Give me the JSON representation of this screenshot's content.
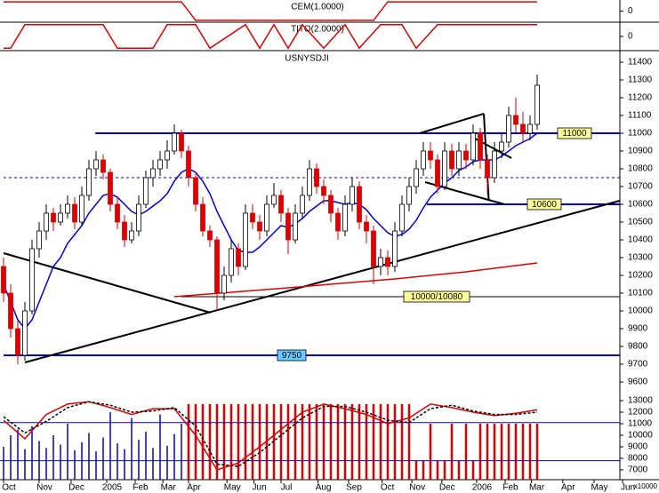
{
  "chart_data": [
    {
      "type": "line",
      "title": "CEM(1.0000)",
      "color": "#e00000",
      "x": [
        0,
        25,
        27,
        52,
        54,
        75
      ],
      "values": [
        1,
        1,
        -1,
        -1,
        1,
        1
      ],
      "ylim": [
        -1.2,
        1.2
      ],
      "yticks": [
        0
      ]
    },
    {
      "type": "line",
      "title": "TITO(2.0000)",
      "color": "#e00000",
      "x": [
        0,
        1,
        3,
        4,
        14,
        16,
        21,
        23,
        27,
        29,
        34,
        36,
        38,
        40,
        42,
        45,
        48,
        50,
        53,
        56,
        58,
        61,
        63,
        75
      ],
      "values": [
        -1,
        -1,
        1,
        1,
        1,
        -1,
        -1,
        1,
        1,
        -1,
        1,
        -1,
        1,
        -1,
        1,
        -1,
        1,
        -1,
        1,
        1,
        -1,
        1,
        1,
        1
      ],
      "ylim": [
        -1.2,
        1.2
      ],
      "yticks": [
        0
      ]
    },
    {
      "type": "candlestick",
      "title": "USNYSDJI",
      "up_color": "#ffffff",
      "down_color": "#e00000",
      "ohlc": [
        [
          10250,
          10300,
          10050,
          10100
        ],
        [
          10100,
          10150,
          9850,
          9900
        ],
        [
          9900,
          9950,
          9700,
          9750
        ],
        [
          9750,
          10050,
          9720,
          10000
        ],
        [
          10000,
          10400,
          9980,
          10350
        ],
        [
          10350,
          10500,
          10300,
          10450
        ],
        [
          10450,
          10600,
          10400,
          10550
        ],
        [
          10550,
          10580,
          10450,
          10500
        ],
        [
          10500,
          10600,
          10480,
          10550
        ],
        [
          10550,
          10650,
          10520,
          10600
        ],
        [
          10600,
          10640,
          10460,
          10500
        ],
        [
          10500,
          10700,
          10480,
          10650
        ],
        [
          10650,
          10850,
          10620,
          10800
        ],
        [
          10800,
          10900,
          10760,
          10850
        ],
        [
          10850,
          10880,
          10740,
          10780
        ],
        [
          10780,
          10800,
          10560,
          10600
        ],
        [
          10600,
          10640,
          10460,
          10500
        ],
        [
          10500,
          10540,
          10360,
          10400
        ],
        [
          10400,
          10500,
          10380,
          10450
        ],
        [
          10450,
          10650,
          10420,
          10600
        ],
        [
          10600,
          10790,
          10580,
          10750
        ],
        [
          10750,
          10850,
          10700,
          10800
        ],
        [
          10800,
          10900,
          10760,
          10850
        ],
        [
          10850,
          10960,
          10800,
          10900
        ],
        [
          10900,
          11050,
          10880,
          11000
        ],
        [
          11000,
          11020,
          10860,
          10900
        ],
        [
          10900,
          10930,
          10700,
          10750
        ],
        [
          10750,
          10780,
          10560,
          10600
        ],
        [
          10600,
          10640,
          10420,
          10450
        ],
        [
          10450,
          10480,
          10360,
          10400
        ],
        [
          10400,
          10420,
          10000,
          10100
        ],
        [
          10100,
          10250,
          10060,
          10200
        ],
        [
          10200,
          10400,
          10160,
          10350
        ],
        [
          10350,
          10380,
          10200,
          10250
        ],
        [
          10250,
          10600,
          10230,
          10550
        ],
        [
          10550,
          10600,
          10460,
          10500
        ],
        [
          10500,
          10540,
          10400,
          10450
        ],
        [
          10450,
          10650,
          10420,
          10600
        ],
        [
          10600,
          10720,
          10580,
          10650
        ],
        [
          10650,
          10680,
          10500,
          10550
        ],
        [
          10550,
          10580,
          10320,
          10400
        ],
        [
          10400,
          10600,
          10380,
          10550
        ],
        [
          10550,
          10700,
          10520,
          10650
        ],
        [
          10650,
          10850,
          10620,
          10800
        ],
        [
          10800,
          10830,
          10660,
          10700
        ],
        [
          10700,
          10740,
          10600,
          10650
        ],
        [
          10650,
          10680,
          10500,
          10550
        ],
        [
          10550,
          10580,
          10400,
          10450
        ],
        [
          10450,
          10650,
          10420,
          10600
        ],
        [
          10600,
          10750,
          10560,
          10700
        ],
        [
          10700,
          10730,
          10460,
          10500
        ],
        [
          10500,
          10540,
          10380,
          10450
        ],
        [
          10450,
          10480,
          10150,
          10250
        ],
        [
          10250,
          10350,
          10200,
          10300
        ],
        [
          10300,
          10340,
          10200,
          10250
        ],
        [
          10250,
          10500,
          10220,
          10450
        ],
        [
          10450,
          10650,
          10420,
          10600
        ],
        [
          10600,
          10750,
          10560,
          10700
        ],
        [
          10700,
          10850,
          10660,
          10800
        ],
        [
          10800,
          10950,
          10760,
          10900
        ],
        [
          10900,
          10950,
          10800,
          10850
        ],
        [
          10850,
          10880,
          10660,
          10700
        ],
        [
          10700,
          10950,
          10680,
          10900
        ],
        [
          10900,
          10940,
          10760,
          10800
        ],
        [
          10800,
          10950,
          10760,
          10900
        ],
        [
          10900,
          10940,
          10800,
          10850
        ],
        [
          10850,
          11050,
          10820,
          11000
        ],
        [
          11000,
          11030,
          10800,
          10850
        ],
        [
          10850,
          10880,
          10660,
          10750
        ],
        [
          10750,
          10950,
          10720,
          10900
        ],
        [
          10900,
          11000,
          10860,
          10950
        ],
        [
          10950,
          11150,
          10920,
          11100
        ],
        [
          11100,
          11200,
          11000,
          11050
        ],
        [
          11050,
          11120,
          10950,
          11000
        ],
        [
          11000,
          11100,
          10960,
          11050
        ],
        [
          11050,
          11330,
          11020,
          11270
        ]
      ],
      "lines": [
        {
          "color": "#0000dd",
          "values": [
            10150,
            10050,
            9950,
            9900,
            9950,
            10050,
            10150,
            10250,
            10300,
            10380,
            10430,
            10480,
            10550,
            10600,
            10650,
            10660,
            10640,
            10600,
            10560,
            10540,
            10560,
            10590,
            10620,
            10660,
            10730,
            10780,
            10800,
            10780,
            10730,
            10660,
            10560,
            10480,
            10400,
            10340,
            10330,
            10330,
            10360,
            10400,
            10440,
            10480,
            10470,
            10490,
            10520,
            10560,
            10590,
            10620,
            10620,
            10610,
            10600,
            10610,
            10600,
            10570,
            10520,
            10480,
            10440,
            10420,
            10430,
            10460,
            10510,
            10580,
            10640,
            10680,
            10720,
            10750,
            10790,
            10810,
            10840,
            10850,
            10850,
            10850,
            10870,
            10900,
            10930,
            10950,
            10970,
            11000
          ]
        },
        {
          "color": "#e00000",
          "x": [
            24,
            40,
            55,
            65,
            75
          ],
          "values": [
            10080,
            10130,
            10180,
            10220,
            10270
          ]
        }
      ],
      "levels": [
        {
          "value": 11000,
          "from": 12.9,
          "color": "#0000dd",
          "label": "11000",
          "label_color": "#ffff99"
        },
        {
          "value": 10600,
          "from": 59.5,
          "color": "#0000dd",
          "label": "10600",
          "label_color": "#ffff99"
        },
        {
          "value": 10080,
          "from": 25,
          "color": "#000000",
          "label": "10000/10080",
          "label_color": "#ffff99"
        },
        {
          "value": 9750,
          "from": 0,
          "color": "#0000dd",
          "label": "9750",
          "label_color": "#66ccff"
        },
        {
          "value": 10750,
          "from": 0,
          "color": "#0000dd",
          "dashed": true
        }
      ],
      "trendlines": [
        {
          "x": [
            0,
            29.1
          ],
          "y": [
            10325,
            9990
          ]
        },
        {
          "x": [
            3,
            86.6
          ],
          "y": [
            9710,
            10620
          ]
        },
        {
          "x": [
            58.5,
            67.5
          ],
          "y": [
            11000,
            11110
          ]
        },
        {
          "x": [
            59.25,
            70.4
          ],
          "y": [
            10725,
            10600
          ]
        },
        {
          "x": [
            67.5,
            68.2
          ],
          "y": [
            11110,
            10620
          ]
        },
        {
          "x": [
            65.8,
            71.4
          ],
          "y": [
            10980,
            10860
          ]
        }
      ],
      "xlim": [
        0,
        86.625
      ],
      "xticks": [
        {
          "value": 0,
          "label": "Oct"
        },
        {
          "value": 5,
          "label": "Nov"
        },
        {
          "value": 9.5,
          "label": "Dec"
        },
        {
          "value": 14.5,
          "label": "2005"
        },
        {
          "value": 18.5,
          "label": "Feb"
        },
        {
          "value": 22.4,
          "label": "Mar"
        },
        {
          "value": 26,
          "label": "Apr"
        },
        {
          "value": 31.4,
          "label": "May"
        },
        {
          "value": 35.2,
          "label": "Jun"
        },
        {
          "value": 39,
          "label": "Jul"
        },
        {
          "value": 44.2,
          "label": "Aug"
        },
        {
          "value": 48.5,
          "label": "Sep"
        },
        {
          "value": 53.2,
          "label": "Oct"
        },
        {
          "value": 57.4,
          "label": "Nov"
        },
        {
          "value": 61.6,
          "label": "Dec"
        },
        {
          "value": 66.5,
          "label": "2006"
        },
        {
          "value": 70.5,
          "label": "Feb"
        },
        {
          "value": 74.2,
          "label": "Mar"
        },
        {
          "value": 78.6,
          "label": "Apr"
        },
        {
          "value": 83,
          "label": "May"
        },
        {
          "value": 87,
          "label": "Jun"
        }
      ],
      "ylim": [
        9590,
        11465
      ],
      "yticks": [
        9600,
        9700,
        9800,
        9900,
        10000,
        10100,
        10200,
        10300,
        10400,
        10500,
        10600,
        10700,
        10800,
        10900,
        11000,
        11100,
        11200,
        11300,
        11400
      ]
    },
    {
      "type": "bar",
      "unit_label": "x10000",
      "bars": [
        {
          "color": "#0000dd",
          "x": [
            0,
            1,
            2,
            3,
            4,
            5,
            6,
            7,
            8,
            9,
            10,
            11,
            12,
            13,
            14,
            15,
            16,
            17,
            18,
            19,
            20,
            21,
            22,
            23,
            24,
            25
          ],
          "values": [
            9000,
            10000,
            10500,
            8800,
            10800,
            9500,
            8900,
            10000,
            9200,
            11000,
            8700,
            9400,
            10200,
            8600,
            9800,
            12000,
            9300,
            8800,
            11500,
            9600,
            10300,
            8900,
            11800,
            9100,
            10100,
            11000
          ]
        },
        {
          "color": "#e00000",
          "x": [
            26,
            27,
            28,
            29,
            30,
            31,
            32,
            33,
            34,
            35,
            36,
            37,
            38,
            39,
            40,
            41,
            42,
            43,
            44,
            45,
            46,
            47,
            48,
            49,
            50,
            51,
            52,
            53,
            54,
            55,
            56,
            57,
            58,
            59,
            60,
            61,
            62,
            63,
            64,
            65,
            66,
            67,
            68,
            69,
            70,
            71,
            72,
            73,
            74,
            75
          ],
          "values": [
            12700,
            12700,
            12700,
            12700,
            12700,
            12700,
            12700,
            12700,
            12700,
            12700,
            12700,
            12700,
            12700,
            12700,
            12700,
            12700,
            12700,
            12700,
            12700,
            12700,
            12700,
            12700,
            12700,
            12700,
            12700,
            12700,
            12700,
            12700,
            12700,
            12700,
            12700,
            12700,
            7800,
            7800,
            11000,
            7800,
            7800,
            11000,
            7800,
            11000,
            7800,
            11000,
            11000,
            11000,
            11000,
            11000,
            11000,
            11000,
            11000,
            11000
          ]
        }
      ],
      "lines": [
        {
          "color": "#e00000",
          "x": [
            0,
            3,
            6,
            9,
            12,
            15,
            18,
            21,
            24,
            27,
            30,
            33,
            36,
            39,
            42,
            45,
            48,
            51,
            54,
            57,
            60,
            63,
            66,
            69,
            72,
            75
          ],
          "values": [
            11300,
            9700,
            11800,
            12700,
            12900,
            12400,
            11800,
            12300,
            12300,
            10000,
            7000,
            7600,
            9000,
            10500,
            12000,
            12700,
            12300,
            11800,
            11000,
            11500,
            12700,
            12400,
            12000,
            11700,
            11900,
            12200
          ]
        },
        {
          "color": "#000000",
          "dashed": true,
          "x": [
            0,
            3,
            6,
            9,
            12,
            15,
            18,
            21,
            24,
            27,
            30,
            33,
            36,
            39,
            42,
            45,
            48,
            51,
            54,
            57,
            60,
            63,
            66,
            69,
            72,
            75
          ],
          "values": [
            11600,
            10200,
            11200,
            12400,
            12900,
            12600,
            12000,
            12100,
            12400,
            10800,
            7500,
            7300,
            8500,
            10000,
            11500,
            12500,
            12500,
            12000,
            11300,
            11100,
            12300,
            12600,
            12100,
            11800,
            11800,
            12000
          ]
        }
      ],
      "levels": [
        {
          "value": 11100,
          "color": "#0000dd"
        },
        {
          "value": 7800,
          "color": "#0000dd"
        }
      ],
      "ylim": [
        6150,
        13850
      ],
      "yticks": [
        7000,
        8000,
        9000,
        10000,
        11000,
        12000,
        13000
      ]
    }
  ]
}
